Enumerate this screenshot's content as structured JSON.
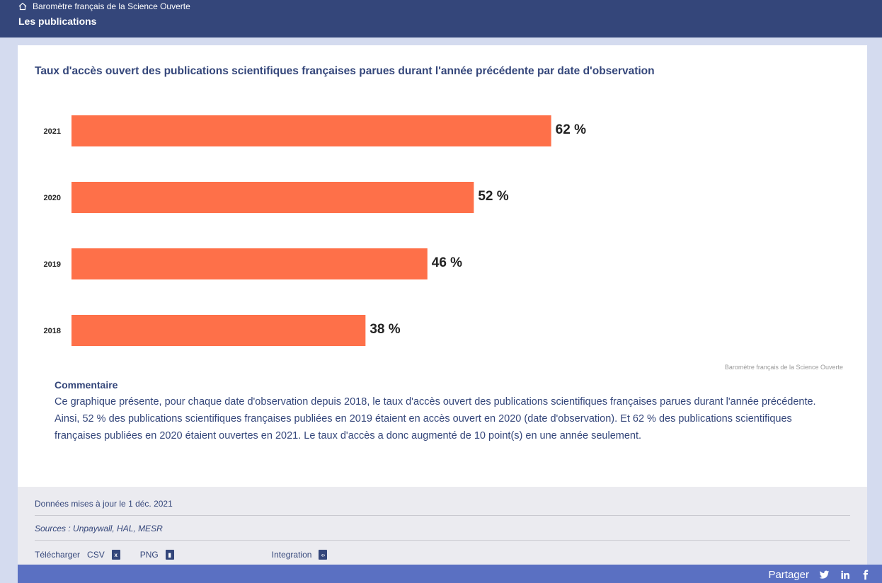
{
  "header": {
    "breadcrumb": "Baromètre français de la Science Ouverte",
    "title": "Les publications"
  },
  "chart_data": {
    "type": "bar",
    "orientation": "horizontal",
    "title": "Taux d'accès ouvert des publications scientifiques françaises parues durant l'année précédente par date d'observation",
    "categories": [
      "2021",
      "2020",
      "2019",
      "2018"
    ],
    "values": [
      62,
      52,
      46,
      38
    ],
    "value_labels": [
      "62 %",
      "52 %",
      "46 %",
      "38 %"
    ],
    "xlim": [
      0,
      100
    ],
    "bar_color": "#fe7049",
    "grid": false,
    "credit": "Baromètre français de la Science Ouverte"
  },
  "comment": {
    "heading": "Commentaire",
    "paragraph1": "Ce graphique présente, pour chaque date d'observation depuis 2018, le taux d'accès ouvert des publications scientifiques françaises parues durant l'année précédente.",
    "paragraph2": "Ainsi, 52 % des publications scientifiques françaises publiées en 2019 étaient en accès ouvert en 2020 (date d'observation). Et 62 % des publications scientifiques françaises publiées en 2020 étaient ouvertes en 2021. Le taux d'accès a donc augmenté de 10 point(s) en une année seulement."
  },
  "footer": {
    "updated": "Données mises à jour le 1 déc. 2021",
    "sources": "Sources : Unpaywall, HAL, MESR",
    "download_label": "Télécharger",
    "csv_label": "CSV",
    "png_label": "PNG",
    "integration_label": "Integration"
  },
  "share": {
    "label": "Partager",
    "icons": [
      "twitter-icon",
      "linkedin-icon",
      "facebook-icon"
    ]
  },
  "colors": {
    "header_bg": "#34467a",
    "share_bg": "#5a70c2",
    "bar": "#fe7049"
  }
}
